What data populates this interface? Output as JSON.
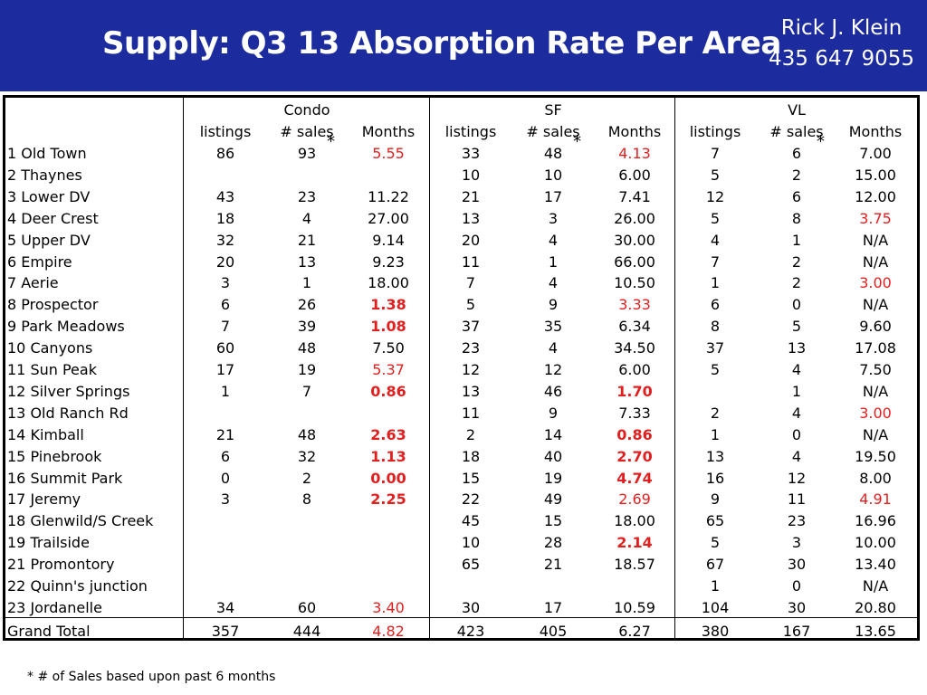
{
  "header": {
    "title": "Supply: Q3 13 Absorption Rate Per Area",
    "contact_name": "Rick J. Klein",
    "contact_phone": "435 647 9055"
  },
  "table": {
    "groups": [
      "Condo",
      "SF",
      "VL"
    ],
    "subheaders": [
      "listings",
      "# sales",
      "Months",
      "listings",
      "# sales",
      "Months",
      "listings",
      "# sales",
      "Months"
    ],
    "asterisk": "*",
    "rows": [
      {
        "area": "1 Old Town",
        "vals": [
          "86",
          "93",
          "5.55",
          "33",
          "48",
          "4.13",
          "7",
          "6",
          "7.00"
        ],
        "styles": [
          "",
          "",
          "r",
          "",
          "",
          "r",
          "",
          "",
          ""
        ]
      },
      {
        "area": "2 Thaynes",
        "vals": [
          "",
          "",
          "",
          "10",
          "10",
          "6.00",
          "5",
          "2",
          "15.00"
        ],
        "styles": [
          "",
          "",
          "",
          "",
          "",
          "",
          "",
          "",
          ""
        ]
      },
      {
        "area": "3 Lower DV",
        "vals": [
          "43",
          "23",
          "11.22",
          "21",
          "17",
          "7.41",
          "12",
          "6",
          "12.00"
        ],
        "styles": [
          "",
          "",
          "",
          "",
          "",
          "",
          "",
          "",
          ""
        ]
      },
      {
        "area": "4 Deer Crest",
        "vals": [
          "18",
          "4",
          "27.00",
          "13",
          "3",
          "26.00",
          "5",
          "8",
          "3.75"
        ],
        "styles": [
          "",
          "",
          "",
          "",
          "",
          "",
          "",
          "",
          "r"
        ]
      },
      {
        "area": "5 Upper DV",
        "vals": [
          "32",
          "21",
          "9.14",
          "20",
          "4",
          "30.00",
          "4",
          "1",
          "N/A"
        ],
        "styles": [
          "",
          "",
          "",
          "",
          "",
          "",
          "",
          "",
          ""
        ]
      },
      {
        "area": "6 Empire",
        "vals": [
          "20",
          "13",
          "9.23",
          "11",
          "1",
          "66.00",
          "7",
          "2",
          "N/A"
        ],
        "styles": [
          "",
          "",
          "",
          "",
          "",
          "",
          "",
          "",
          ""
        ]
      },
      {
        "area": "7 Aerie",
        "vals": [
          "3",
          "1",
          "18.00",
          "7",
          "4",
          "10.50",
          "1",
          "2",
          "3.00"
        ],
        "styles": [
          "",
          "",
          "",
          "",
          "",
          "",
          "",
          "",
          "r"
        ]
      },
      {
        "area": "8 Prospector",
        "vals": [
          "6",
          "26",
          "1.38",
          "5",
          "9",
          "3.33",
          "6",
          "0",
          "N/A"
        ],
        "styles": [
          "",
          "",
          "rb",
          "",
          "",
          "r",
          "",
          "",
          ""
        ]
      },
      {
        "area": "9 Park Meadows",
        "vals": [
          "7",
          "39",
          "1.08",
          "37",
          "35",
          "6.34",
          "8",
          "5",
          "9.60"
        ],
        "styles": [
          "",
          "",
          "rb",
          "",
          "",
          "",
          "",
          "",
          ""
        ]
      },
      {
        "area": "10 Canyons",
        "vals": [
          "60",
          "48",
          "7.50",
          "23",
          "4",
          "34.50",
          "37",
          "13",
          "17.08"
        ],
        "styles": [
          "",
          "",
          "",
          "",
          "",
          "",
          "",
          "",
          ""
        ]
      },
      {
        "area": "11 Sun Peak",
        "vals": [
          "17",
          "19",
          "5.37",
          "12",
          "12",
          "6.00",
          "5",
          "4",
          "7.50"
        ],
        "styles": [
          "",
          "",
          "r",
          "",
          "",
          "",
          "",
          "",
          ""
        ]
      },
      {
        "area": "12 Silver Springs",
        "vals": [
          "1",
          "7",
          "0.86",
          "13",
          "46",
          "1.70",
          "",
          "1",
          "N/A"
        ],
        "styles": [
          "",
          "",
          "rb",
          "",
          "",
          "rb",
          "",
          "",
          ""
        ]
      },
      {
        "area": "13 Old Ranch Rd",
        "vals": [
          "",
          "",
          "",
          "11",
          "9",
          "7.33",
          "2",
          "4",
          "3.00"
        ],
        "styles": [
          "",
          "",
          "",
          "",
          "",
          "",
          "",
          "",
          "r"
        ]
      },
      {
        "area": "14 Kimball",
        "vals": [
          "21",
          "48",
          "2.63",
          "2",
          "14",
          "0.86",
          "1",
          "0",
          "N/A"
        ],
        "styles": [
          "",
          "",
          "rb",
          "",
          "",
          "rb",
          "",
          "",
          ""
        ]
      },
      {
        "area": "15 Pinebrook",
        "vals": [
          "6",
          "32",
          "1.13",
          "18",
          "40",
          "2.70",
          "13",
          "4",
          "19.50"
        ],
        "styles": [
          "",
          "",
          "rb",
          "",
          "",
          "rb",
          "",
          "",
          ""
        ]
      },
      {
        "area": "16 Summit Park",
        "vals": [
          "0",
          "2",
          "0.00",
          "15",
          "19",
          "4.74",
          "16",
          "12",
          "8.00"
        ],
        "styles": [
          "",
          "",
          "rb",
          "",
          "",
          "rb",
          "",
          "",
          ""
        ]
      },
      {
        "area": "17 Jeremy",
        "vals": [
          "3",
          "8",
          "2.25",
          "22",
          "49",
          "2.69",
          "9",
          "11",
          "4.91"
        ],
        "styles": [
          "",
          "",
          "rb",
          "",
          "",
          "r",
          "",
          "",
          "r"
        ]
      },
      {
        "area": "18 Glenwild/S Creek",
        "vals": [
          "",
          "",
          "",
          "45",
          "15",
          "18.00",
          "65",
          "23",
          "16.96"
        ],
        "styles": [
          "",
          "",
          "",
          "",
          "",
          "",
          "",
          "",
          ""
        ]
      },
      {
        "area": "19 Trailside",
        "vals": [
          "",
          "",
          "",
          "10",
          "28",
          "2.14",
          "5",
          "3",
          "10.00"
        ],
        "styles": [
          "",
          "",
          "",
          "",
          "",
          "rb",
          "",
          "",
          ""
        ]
      },
      {
        "area": "21 Promontory",
        "vals": [
          "",
          "",
          "",
          "65",
          "21",
          "18.57",
          "67",
          "30",
          "13.40"
        ],
        "styles": [
          "",
          "",
          "",
          "",
          "",
          "",
          "",
          "",
          ""
        ]
      },
      {
        "area": "22 Quinn's junction",
        "vals": [
          "",
          "",
          "",
          "",
          "",
          "",
          "1",
          "0",
          "N/A"
        ],
        "styles": [
          "",
          "",
          "",
          "",
          "",
          "",
          "",
          "",
          ""
        ]
      },
      {
        "area": "23 Jordanelle",
        "vals": [
          "34",
          "60",
          "3.40",
          "30",
          "17",
          "10.59",
          "104",
          "30",
          "20.80"
        ],
        "styles": [
          "",
          "",
          "r",
          "",
          "",
          "",
          "",
          "",
          ""
        ]
      }
    ],
    "total": {
      "area": "Grand Total",
      "vals": [
        "357",
        "444",
        "4.82",
        "423",
        "405",
        "6.27",
        "380",
        "167",
        "13.65"
      ],
      "styles": [
        "",
        "",
        "r",
        "",
        "",
        "",
        "",
        "",
        ""
      ]
    }
  },
  "footnote": "* # of Sales based upon past 6 months",
  "colors": {
    "header_bg": "#1c2c9e",
    "highlight_red": "#e21f1f"
  }
}
